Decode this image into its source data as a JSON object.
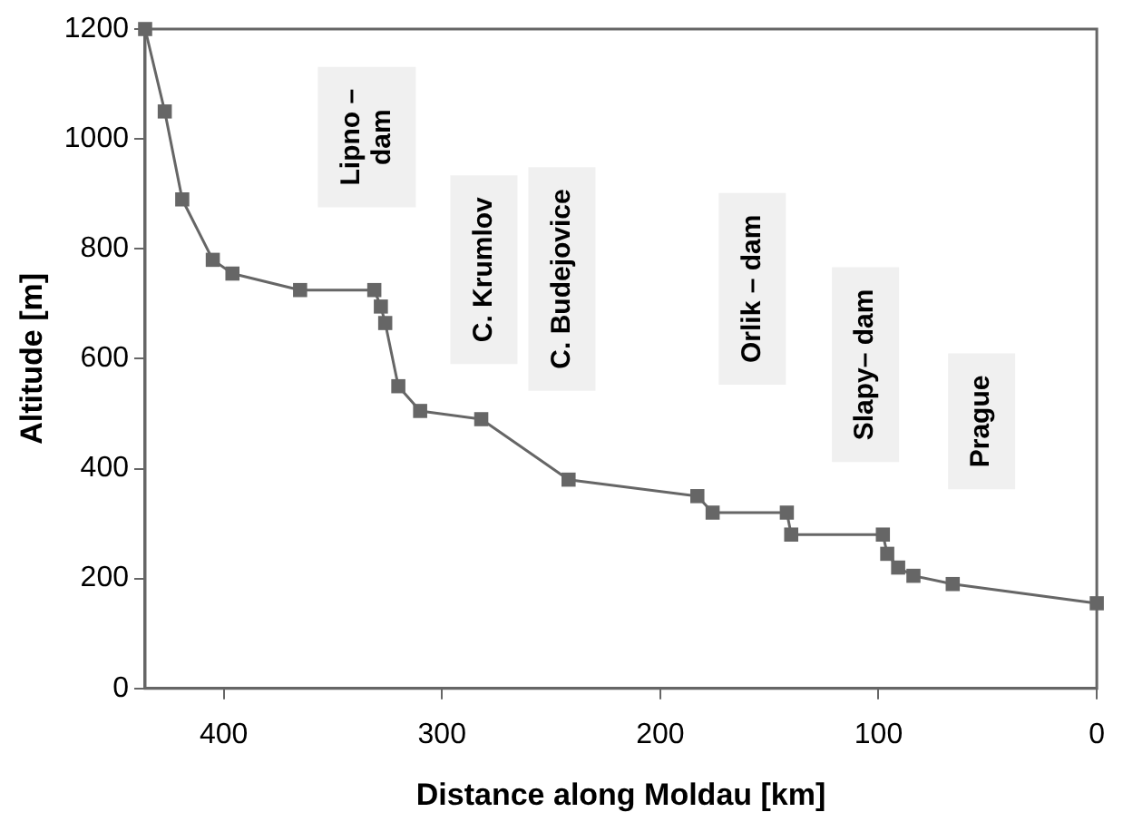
{
  "chart_data": {
    "type": "line",
    "xlabel": "Distance along Moldau [km]",
    "ylabel": "Altitude [m]",
    "x": [
      436,
      427,
      419,
      405,
      396,
      365,
      331,
      328,
      326,
      320,
      310,
      282,
      242,
      183,
      176,
      142,
      140,
      98,
      96,
      91,
      84,
      66,
      0
    ],
    "series": [
      {
        "color": "#666666",
        "values": [
          1200,
          1050,
          890,
          780,
          755,
          725,
          725,
          695,
          665,
          550,
          505,
          490,
          380,
          350,
          320,
          320,
          280,
          280,
          245,
          220,
          205,
          190,
          155
        ]
      }
    ],
    "xlim": [
      436,
      0
    ],
    "xticks": [
      400,
      300,
      200,
      100,
      0
    ],
    "ylim": [
      0,
      1200
    ],
    "yticks": [
      0,
      200,
      400,
      600,
      800,
      1000,
      1200
    ],
    "grid": false,
    "legend": false,
    "marker": "square",
    "line_style": "solid",
    "annotations": [
      "Lipno –\ndam",
      "C. Krumlov",
      "C. Budejovice",
      "Orlik – dam",
      "Slapy– dam",
      "Prague"
    ]
  }
}
